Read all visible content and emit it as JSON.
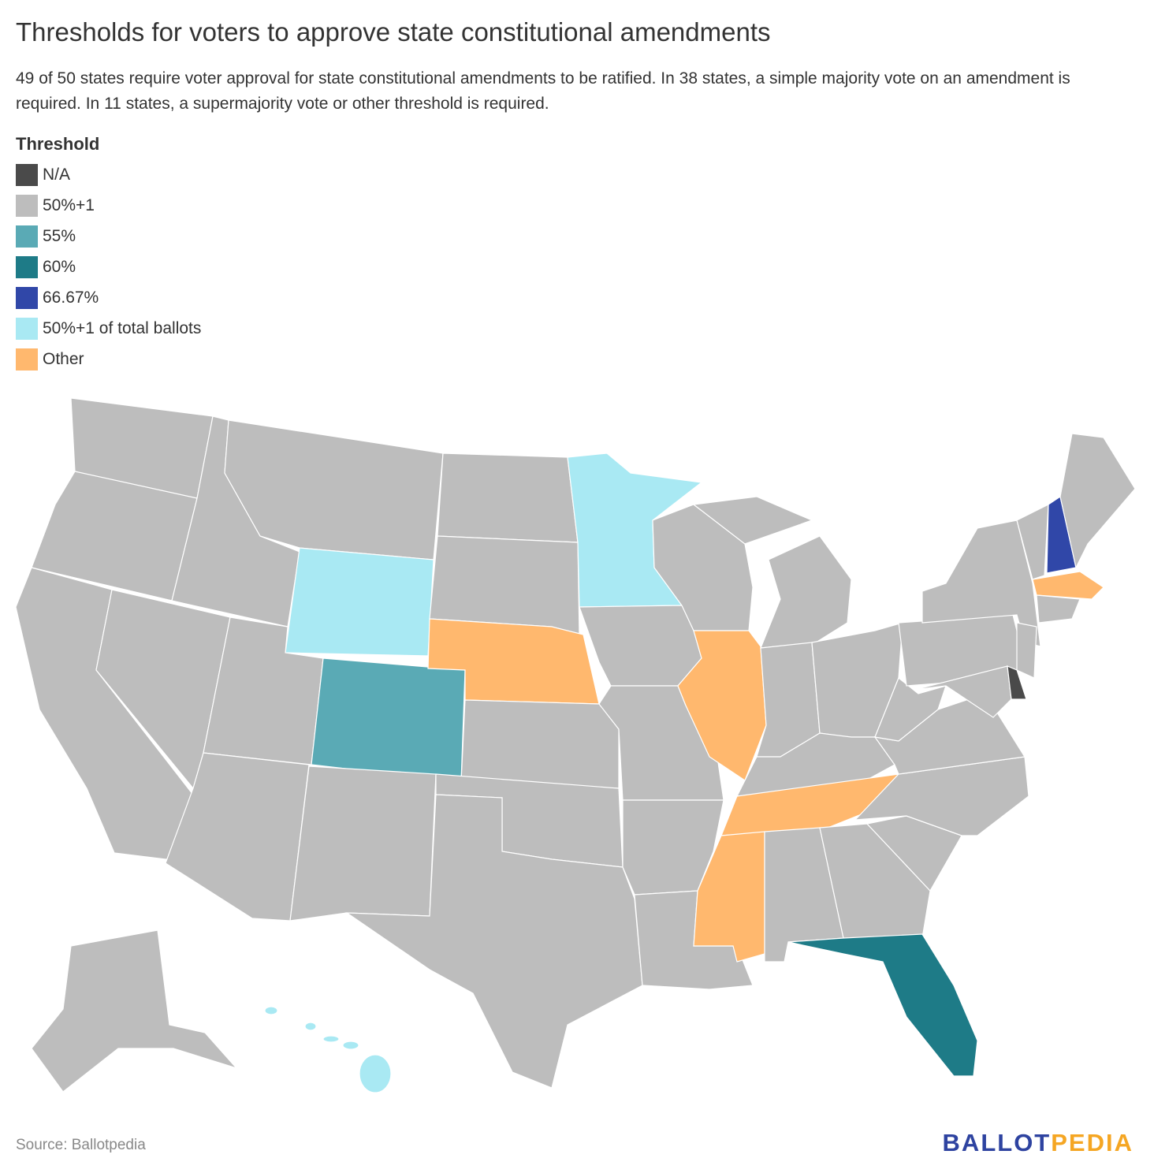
{
  "header": {
    "title": "Thresholds for voters to approve state constitutional amendments",
    "subtitle": "49 of 50 states require voter approval for state constitutional amendments to be ratified. In 38 states, a simple majority vote on an amendment is required. In 11 states, a supermajority vote or other threshold is required."
  },
  "legend": {
    "title": "Threshold",
    "items": [
      {
        "label": "N/A",
        "color": "#4a4a4a"
      },
      {
        "label": "50%+1",
        "color": "#bdbdbd"
      },
      {
        "label": "55%",
        "color": "#5aaab5"
      },
      {
        "label": "60%",
        "color": "#1e7b87"
      },
      {
        "label": "66.67%",
        "color": "#3047a8"
      },
      {
        "label": "50%+1 of total ballots",
        "color": "#a9e9f3"
      },
      {
        "label": "Other",
        "color": "#ffb86e"
      }
    ]
  },
  "footer": {
    "source": "Source: Ballotpedia",
    "logo": [
      {
        "text": "BALLOT",
        "color": "#2e43a0"
      },
      {
        "text": "PEDIA",
        "color": "#f5a623"
      }
    ]
  }
}
